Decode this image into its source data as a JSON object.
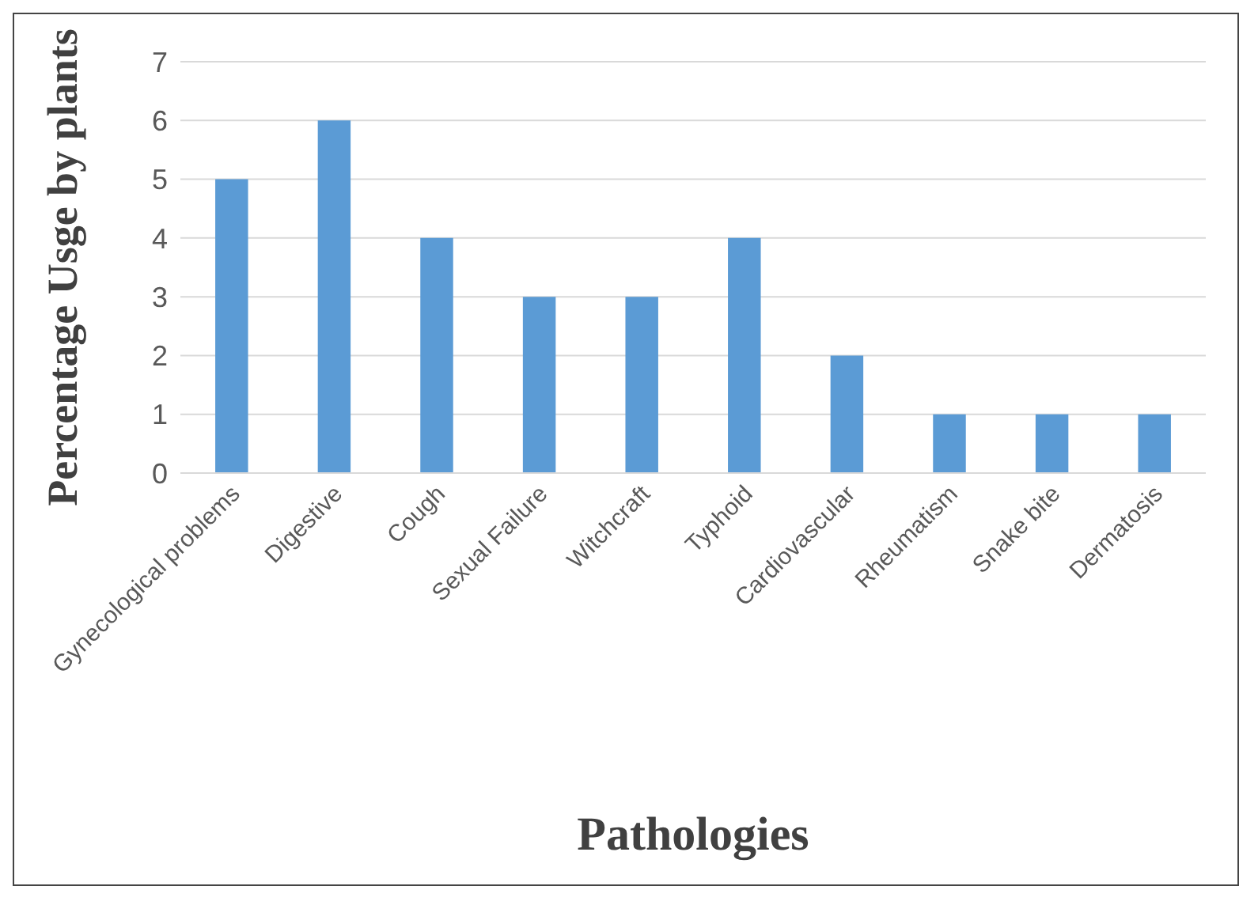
{
  "chart_data": {
    "type": "bar",
    "xlabel": "Pathologies",
    "ylabel": "Percentage Usge by plants",
    "categories": [
      "Gynecological problems",
      "Digestive",
      "Cough",
      "Sexual Failure",
      "Witchcraft",
      "Typhoid",
      "Cardiovascular",
      "Rheumatism",
      "Snake bite",
      "Dermatosis"
    ],
    "values": [
      5,
      6,
      4,
      3,
      3,
      4,
      2,
      1,
      1,
      1
    ],
    "color": "#5b9bd5",
    "ylim": [
      0,
      7
    ],
    "yticks": [
      0,
      1,
      2,
      3,
      4,
      5,
      6,
      7
    ],
    "grid": "y"
  }
}
